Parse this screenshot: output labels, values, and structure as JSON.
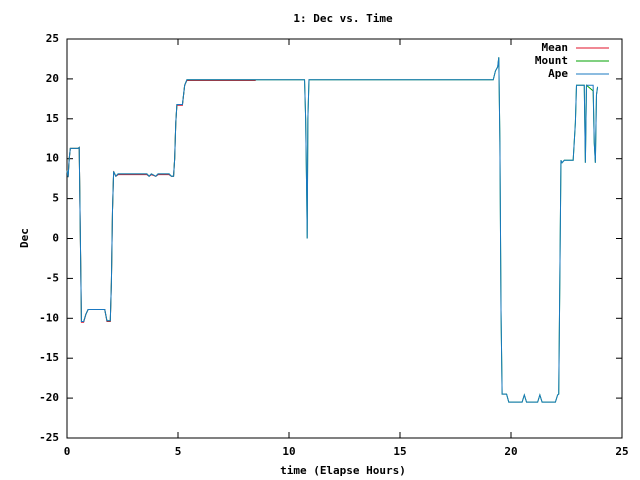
{
  "chart_data": {
    "type": "line",
    "title": "1: Dec vs. Time",
    "xlabel": "time (Elapse Hours)",
    "ylabel": "Dec",
    "xlim": [
      0,
      25
    ],
    "xticks": [
      0,
      5,
      10,
      15,
      20,
      25
    ],
    "ylim": [
      -25,
      25
    ],
    "yticks": [
      -25,
      -20,
      -15,
      -10,
      -5,
      0,
      5,
      10,
      15,
      20,
      25
    ],
    "grid": false,
    "legend": "top-right",
    "x": [
      0,
      0.05,
      0.1,
      0.15,
      0.5,
      0.55,
      0.6,
      0.65,
      0.75,
      0.85,
      0.95,
      1.7,
      1.8,
      1.95,
      2.0,
      2.05,
      2.1,
      2.2,
      2.3,
      3.6,
      3.7,
      3.8,
      4.0,
      4.1,
      4.6,
      4.7,
      4.8,
      4.85,
      4.9,
      4.95,
      5.2,
      5.3,
      5.4,
      8.5,
      10.7,
      10.75,
      10.8,
      10.82,
      10.85,
      10.9,
      19.2,
      19.3,
      19.4,
      19.45,
      19.5,
      19.55,
      19.6,
      19.8,
      19.9,
      20.5,
      20.6,
      20.7,
      21.2,
      21.3,
      21.4,
      22.0,
      22.1,
      22.15,
      22.2,
      22.25,
      22.3,
      22.4,
      22.8,
      22.9,
      22.95,
      23.3,
      23.35,
      23.4,
      23.7,
      23.75,
      23.8,
      23.85,
      23.9
    ],
    "series": [
      {
        "name": "Mean",
        "color": "#e0102a",
        "values": [
          8.5,
          7.7,
          10,
          11.3,
          11.3,
          11.4,
          0.5,
          -10.5,
          -10.5,
          -9.5,
          -8.9,
          -8.9,
          -10.4,
          -10.4,
          -5.5,
          3.6,
          8.3,
          7.8,
          8.0,
          8.0,
          7.8,
          8.0,
          7.8,
          8.0,
          8.0,
          7.8,
          7.8,
          10,
          14.5,
          16.7,
          16.7,
          19.2,
          19.8,
          19.8,
          null,
          null,
          null,
          null,
          null,
          null,
          null,
          null,
          null,
          null,
          null,
          null,
          null,
          null,
          null,
          null,
          null,
          null,
          null,
          null,
          null,
          null,
          null,
          null,
          null,
          null,
          null,
          null,
          null,
          null,
          null,
          null,
          null,
          null,
          null,
          null,
          null,
          null,
          null
        ]
      },
      {
        "name": "Mount",
        "color": "#00a000",
        "values": [
          8.5,
          7.7,
          10,
          11.3,
          11.3,
          11.4,
          0.5,
          -10.4,
          -10.4,
          -9.5,
          -8.9,
          -8.9,
          -10.3,
          -10.3,
          -5.5,
          3.6,
          8.4,
          7.8,
          8.1,
          8.1,
          7.8,
          8.1,
          7.8,
          8.1,
          8.1,
          7.8,
          7.8,
          10,
          14.5,
          16.8,
          16.8,
          19.2,
          19.9,
          19.9,
          19.9,
          15,
          5,
          0,
          15,
          19.9,
          19.9,
          21,
          21.5,
          22.7,
          12,
          -9,
          -19.5,
          -19.5,
          -20.5,
          -20.5,
          -19.6,
          -20.5,
          -20.5,
          -19.6,
          -20.5,
          -20.5,
          -19.6,
          -19.5,
          -5,
          9.8,
          9.5,
          9.8,
          9.8,
          14.5,
          19.2,
          19.2,
          9.5,
          19.2,
          18.5,
          12,
          9.5,
          18,
          19
        ]
      },
      {
        "name": "Ape",
        "color": "#1a78c2",
        "values": [
          8.5,
          7.7,
          10,
          11.3,
          11.3,
          11.4,
          0.5,
          -10.4,
          -10.4,
          -9.5,
          -8.9,
          -8.9,
          -10.3,
          -10.3,
          -5.5,
          3.6,
          8.4,
          7.8,
          8.1,
          8.1,
          7.8,
          8.1,
          7.8,
          8.1,
          8.1,
          7.8,
          7.8,
          10,
          14.5,
          16.8,
          16.8,
          19.2,
          19.9,
          19.9,
          19.9,
          15,
          5,
          0,
          15,
          19.9,
          19.9,
          21,
          21.5,
          22.7,
          12,
          -9,
          -19.5,
          -19.5,
          -20.5,
          -20.5,
          -19.6,
          -20.5,
          -20.5,
          -19.6,
          -20.5,
          -20.5,
          -19.6,
          -19.5,
          -5,
          9.8,
          9.5,
          9.8,
          9.8,
          14.5,
          19.2,
          19.2,
          9.5,
          19.2,
          19.2,
          12,
          9.5,
          18,
          19
        ]
      }
    ]
  }
}
